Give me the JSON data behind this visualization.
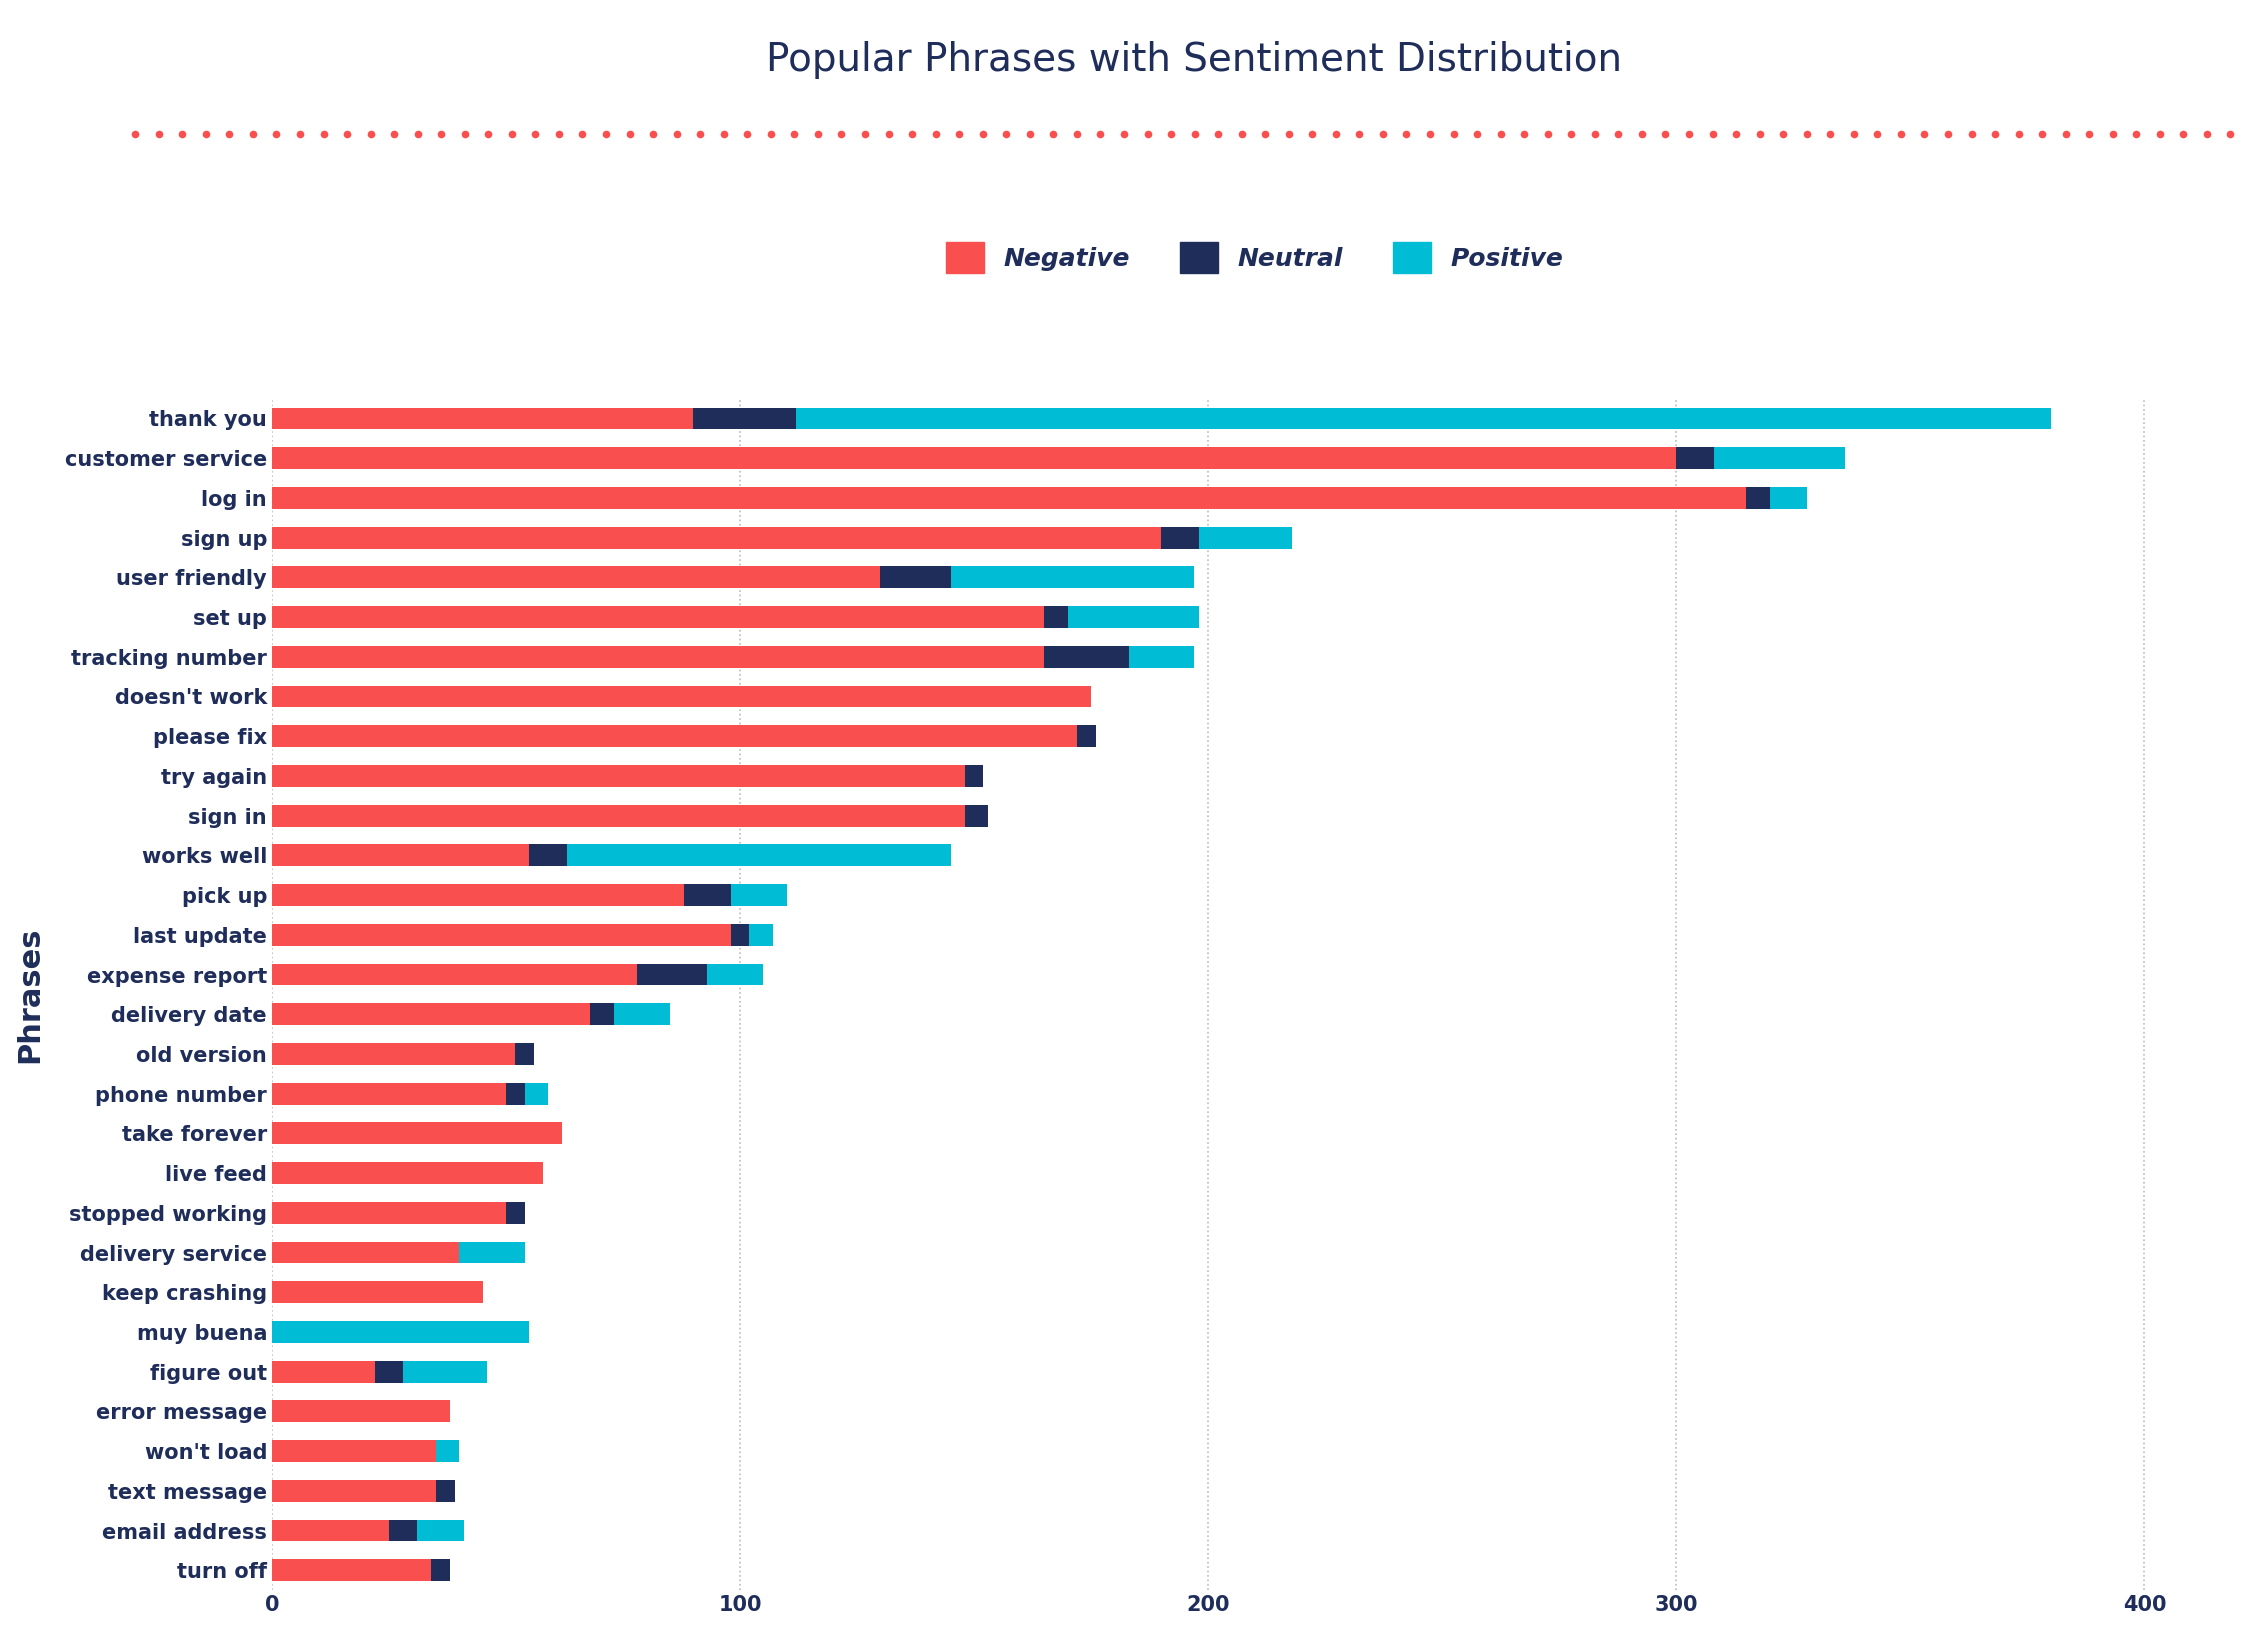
{
  "title": "Popular Phrases with Sentiment Distribution",
  "xlabel": "",
  "ylabel": "Phrases",
  "categories": [
    "thank you",
    "customer service",
    "log in",
    "sign up",
    "user friendly",
    "set up",
    "tracking number",
    "doesn't work",
    "please fix",
    "try again",
    "sign in",
    "works well",
    "pick up",
    "last update",
    "expense report",
    "delivery date",
    "old version",
    "phone number",
    "take forever",
    "live feed",
    "stopped working",
    "delivery service",
    "keep crashing",
    "muy buena",
    "figure out",
    "error message",
    "won't load",
    "text message",
    "email address",
    "turn off"
  ],
  "negative": [
    90,
    300,
    315,
    190,
    130,
    165,
    165,
    175,
    172,
    148,
    148,
    55,
    88,
    98,
    78,
    68,
    52,
    50,
    62,
    58,
    50,
    40,
    45,
    0,
    22,
    38,
    35,
    35,
    25,
    34
  ],
  "neutral": [
    22,
    8,
    5,
    8,
    15,
    5,
    18,
    0,
    4,
    4,
    5,
    8,
    10,
    4,
    15,
    5,
    4,
    4,
    0,
    0,
    4,
    0,
    0,
    0,
    6,
    0,
    0,
    4,
    6,
    4
  ],
  "positive": [
    268,
    28,
    8,
    20,
    52,
    28,
    14,
    0,
    0,
    0,
    0,
    82,
    12,
    5,
    12,
    12,
    0,
    5,
    0,
    0,
    0,
    14,
    0,
    55,
    18,
    0,
    5,
    0,
    10,
    0
  ],
  "neg_color": "#f94f4f",
  "neu_color": "#1f2d5a",
  "pos_color": "#00bcd4",
  "bg_color": "#ffffff",
  "title_color": "#1f2d5a",
  "label_color": "#1f2d5a",
  "dotted_line_color": "#f94f4f",
  "grid_color": "#bbbbbb",
  "title_fontsize": 28,
  "tick_fontsize": 15,
  "legend_fontsize": 18,
  "ylabel_fontsize": 22,
  "xlim": [
    0,
    420
  ]
}
